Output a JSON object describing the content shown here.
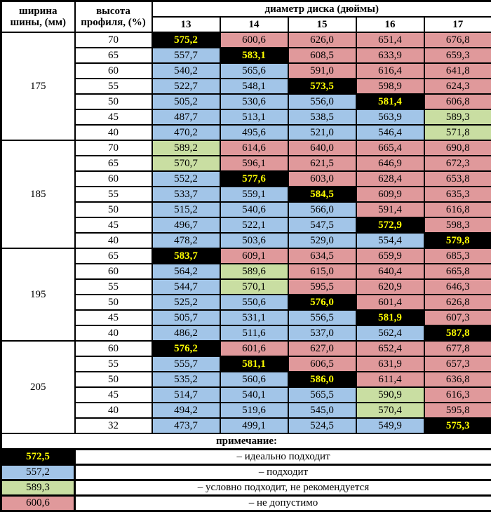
{
  "header": {
    "width_label": "ширина\nшины, (мм)",
    "profile_label": "высота\nпрофиля, (%)",
    "diameter_label": "диаметр диска (дюймы)"
  },
  "chart_data": {
    "type": "table",
    "title": "диаметр диска (дюймы)",
    "row_header_labels": [
      "ширина шины, (мм)",
      "высота профиля, (%)"
    ],
    "columns": [
      "13",
      "14",
      "15",
      "16",
      "17"
    ],
    "status_codes": {
      "i": "идеально подходит (чёрный, жёлтый текст)",
      "b": "подходит (голубой)",
      "g": "условно подходит, не рекомендуется (зелёный)",
      "r": "не допустимо (красный)"
    },
    "groups": [
      {
        "width": "175",
        "rows": [
          {
            "profile": "70",
            "values": [
              "575,2",
              "600,6",
              "626,0",
              "651,4",
              "676,8"
            ],
            "statuses": "irrrr"
          },
          {
            "profile": "65",
            "values": [
              "557,7",
              "583,1",
              "608,5",
              "633,9",
              "659,3"
            ],
            "statuses": "birrr"
          },
          {
            "profile": "60",
            "values": [
              "540,2",
              "565,6",
              "591,0",
              "616,4",
              "641,8"
            ],
            "statuses": "bbrrr"
          },
          {
            "profile": "55",
            "values": [
              "522,7",
              "548,1",
              "573,5",
              "598,9",
              "624,3"
            ],
            "statuses": "bbirr"
          },
          {
            "profile": "50",
            "values": [
              "505,2",
              "530,6",
              "556,0",
              "581,4",
              "606,8"
            ],
            "statuses": "bbbir"
          },
          {
            "profile": "45",
            "values": [
              "487,7",
              "513,1",
              "538,5",
              "563,9",
              "589,3"
            ],
            "statuses": "bbbbg"
          },
          {
            "profile": "40",
            "values": [
              "470,2",
              "495,6",
              "521,0",
              "546,4",
              "571,8"
            ],
            "statuses": "bbbbg"
          }
        ]
      },
      {
        "width": "185",
        "rows": [
          {
            "profile": "70",
            "values": [
              "589,2",
              "614,6",
              "640,0",
              "665,4",
              "690,8"
            ],
            "statuses": "grrrr"
          },
          {
            "profile": "65",
            "values": [
              "570,7",
              "596,1",
              "621,5",
              "646,9",
              "672,3"
            ],
            "statuses": "grrrr"
          },
          {
            "profile": "60",
            "values": [
              "552,2",
              "577,6",
              "603,0",
              "628,4",
              "653,8"
            ],
            "statuses": "birrr"
          },
          {
            "profile": "55",
            "values": [
              "533,7",
              "559,1",
              "584,5",
              "609,9",
              "635,3"
            ],
            "statuses": "bbirr"
          },
          {
            "profile": "50",
            "values": [
              "515,2",
              "540,6",
              "566,0",
              "591,4",
              "616,8"
            ],
            "statuses": "bbbrr"
          },
          {
            "profile": "45",
            "values": [
              "496,7",
              "522,1",
              "547,5",
              "572,9",
              "598,3"
            ],
            "statuses": "bbbir"
          },
          {
            "profile": "40",
            "values": [
              "478,2",
              "503,6",
              "529,0",
              "554,4",
              "579,8"
            ],
            "statuses": "bbbbi"
          }
        ]
      },
      {
        "width": "195",
        "rows": [
          {
            "profile": "65",
            "values": [
              "583,7",
              "609,1",
              "634,5",
              "659,9",
              "685,3"
            ],
            "statuses": "irrrr"
          },
          {
            "profile": "60",
            "values": [
              "564,2",
              "589,6",
              "615,0",
              "640,4",
              "665,8"
            ],
            "statuses": "bgrrr"
          },
          {
            "profile": "55",
            "values": [
              "544,7",
              "570,1",
              "595,5",
              "620,9",
              "646,3"
            ],
            "statuses": "bgrrr"
          },
          {
            "profile": "50",
            "values": [
              "525,2",
              "550,6",
              "576,0",
              "601,4",
              "626,8"
            ],
            "statuses": "bbirr"
          },
          {
            "profile": "45",
            "values": [
              "505,7",
              "531,1",
              "556,5",
              "581,9",
              "607,3"
            ],
            "statuses": "bbbir"
          },
          {
            "profile": "40",
            "values": [
              "486,2",
              "511,6",
              "537,0",
              "562,4",
              "587,8"
            ],
            "statuses": "bbbbi"
          }
        ]
      },
      {
        "width": "205",
        "rows": [
          {
            "profile": "60",
            "values": [
              "576,2",
              "601,6",
              "627,0",
              "652,4",
              "677,8"
            ],
            "statuses": "irrrr"
          },
          {
            "profile": "55",
            "values": [
              "555,7",
              "581,1",
              "606,5",
              "631,9",
              "657,3"
            ],
            "statuses": "birrr"
          },
          {
            "profile": "50",
            "values": [
              "535,2",
              "560,6",
              "586,0",
              "611,4",
              "636,8"
            ],
            "statuses": "bbirr"
          },
          {
            "profile": "45",
            "values": [
              "514,7",
              "540,1",
              "565,5",
              "590,9",
              "616,3"
            ],
            "statuses": "bbbgr"
          },
          {
            "profile": "40",
            "values": [
              "494,2",
              "519,6",
              "545,0",
              "570,4",
              "595,8"
            ],
            "statuses": "bbbgr"
          },
          {
            "profile": "32",
            "values": [
              "473,7",
              "499,1",
              "524,5",
              "549,9",
              "575,3"
            ],
            "statuses": "bbbbi"
          }
        ]
      }
    ],
    "note_title": "примечание:",
    "status_legend": {
      "i": {
        "example": "572,5",
        "label": "– идеально подходит",
        "color": "#000000",
        "text_color": "#ffff00"
      },
      "b": {
        "example": "557,2",
        "label": "– подходит",
        "color": "#a2c5e8"
      },
      "g": {
        "example": "589,3",
        "label": "– условно подходит, не рекомендуется",
        "color": "#c9dea2"
      },
      "r": {
        "example": "600,6",
        "label": "– не допустимо",
        "color": "#e0999b"
      }
    }
  }
}
